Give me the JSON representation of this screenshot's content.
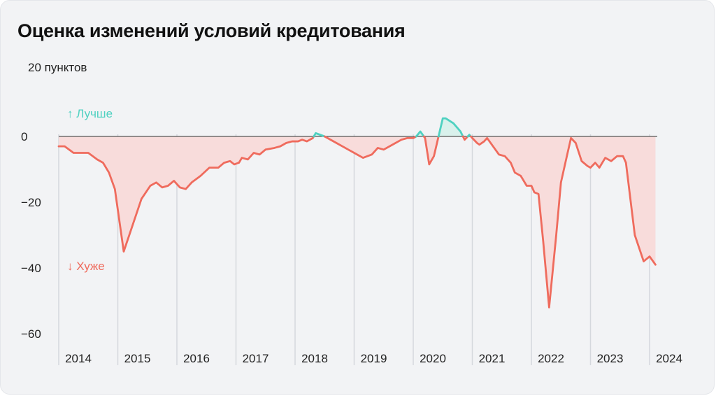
{
  "title": "Оценка изменений условий кредитования",
  "unit_label": "20 пунктов",
  "annotations": {
    "better": "↑ Лучше",
    "worse": "↓ Хуже"
  },
  "colors": {
    "positive": "#4fd1c1",
    "negative": "#ef6b5d",
    "positive_fill": "#d9f1ec",
    "negative_fill": "#f8dcdb",
    "grid": "#d5d8dd",
    "zero_line": "#555555",
    "text": "#222222"
  },
  "chart_data": {
    "type": "line",
    "title": "Оценка изменений условий кредитования",
    "ylabel": "20 пунктов",
    "xlabel": "",
    "y_ticks": [
      0,
      -20,
      -40,
      -60
    ],
    "ylim": [
      -60,
      12
    ],
    "xlim": [
      2014,
      2024.1
    ],
    "x_ticks": [
      "2014",
      "2015",
      "2016",
      "2017",
      "2018",
      "2019",
      "2020",
      "2021",
      "2022",
      "2023",
      "2024"
    ],
    "grid": "vertical",
    "area_fill": "to zero",
    "series": [
      {
        "points": [
          [
            2014.0,
            -3
          ],
          [
            2014.1,
            -3
          ],
          [
            2014.25,
            -5
          ],
          [
            2014.5,
            -5
          ],
          [
            2014.65,
            -7
          ],
          [
            2014.75,
            -8
          ],
          [
            2014.85,
            -11
          ],
          [
            2014.95,
            -16
          ],
          [
            2015.1,
            -35
          ],
          [
            2015.25,
            -27
          ],
          [
            2015.4,
            -19
          ],
          [
            2015.55,
            -15
          ],
          [
            2015.65,
            -14
          ],
          [
            2015.75,
            -15.5
          ],
          [
            2015.85,
            -15
          ],
          [
            2015.95,
            -13.5
          ],
          [
            2016.05,
            -15.5
          ],
          [
            2016.15,
            -16
          ],
          [
            2016.25,
            -14
          ],
          [
            2016.4,
            -12
          ],
          [
            2016.55,
            -9.5
          ],
          [
            2016.7,
            -9.5
          ],
          [
            2016.8,
            -8
          ],
          [
            2016.9,
            -7.5
          ],
          [
            2016.97,
            -8.5
          ],
          [
            2017.05,
            -8
          ],
          [
            2017.1,
            -6.5
          ],
          [
            2017.2,
            -7
          ],
          [
            2017.3,
            -5
          ],
          [
            2017.4,
            -5.5
          ],
          [
            2017.5,
            -4
          ],
          [
            2017.65,
            -3.5
          ],
          [
            2017.75,
            -3
          ],
          [
            2017.85,
            -2
          ],
          [
            2017.95,
            -1.5
          ],
          [
            2018.05,
            -1.5
          ],
          [
            2018.12,
            -1
          ],
          [
            2018.2,
            -1.5
          ],
          [
            2018.3,
            -0.5
          ],
          [
            2018.35,
            1
          ],
          [
            2018.5,
            0
          ],
          [
            2018.7,
            -2
          ],
          [
            2018.9,
            -4
          ],
          [
            2019.05,
            -5.5
          ],
          [
            2019.15,
            -6.5
          ],
          [
            2019.3,
            -5.5
          ],
          [
            2019.4,
            -3.5
          ],
          [
            2019.5,
            -4
          ],
          [
            2019.65,
            -2.5
          ],
          [
            2019.8,
            -1
          ],
          [
            2019.9,
            -0.5
          ],
          [
            2020.0,
            -0.5
          ],
          [
            2020.05,
            0
          ],
          [
            2020.12,
            1.5
          ],
          [
            2020.2,
            -0.5
          ],
          [
            2020.27,
            -8.5
          ],
          [
            2020.35,
            -6
          ],
          [
            2020.5,
            5.5
          ],
          [
            2020.55,
            5.5
          ],
          [
            2020.68,
            4
          ],
          [
            2020.8,
            1.5
          ],
          [
            2020.87,
            -1
          ],
          [
            2020.95,
            0.5
          ],
          [
            2021.0,
            -0.5
          ],
          [
            2021.08,
            -2
          ],
          [
            2021.12,
            -2.5
          ],
          [
            2021.2,
            -1.5
          ],
          [
            2021.25,
            -0.5
          ],
          [
            2021.35,
            -3
          ],
          [
            2021.45,
            -5.5
          ],
          [
            2021.55,
            -6
          ],
          [
            2021.65,
            -8
          ],
          [
            2021.72,
            -11
          ],
          [
            2021.82,
            -12
          ],
          [
            2021.92,
            -15
          ],
          [
            2022.0,
            -15
          ],
          [
            2022.05,
            -17
          ],
          [
            2022.12,
            -17.5
          ],
          [
            2022.2,
            -32
          ],
          [
            2022.3,
            -52
          ],
          [
            2022.42,
            -30
          ],
          [
            2022.5,
            -14
          ],
          [
            2022.6,
            -6
          ],
          [
            2022.67,
            -0.5
          ],
          [
            2022.75,
            -2
          ],
          [
            2022.85,
            -7.5
          ],
          [
            2022.95,
            -9
          ],
          [
            2023.0,
            -9.5
          ],
          [
            2023.08,
            -8
          ],
          [
            2023.15,
            -9.5
          ],
          [
            2023.25,
            -6.5
          ],
          [
            2023.35,
            -7.5
          ],
          [
            2023.45,
            -6
          ],
          [
            2023.55,
            -6
          ],
          [
            2023.6,
            -8
          ],
          [
            2023.75,
            -30
          ],
          [
            2023.9,
            -38
          ],
          [
            2024.0,
            -36.5
          ],
          [
            2024.1,
            -39
          ]
        ]
      }
    ]
  }
}
